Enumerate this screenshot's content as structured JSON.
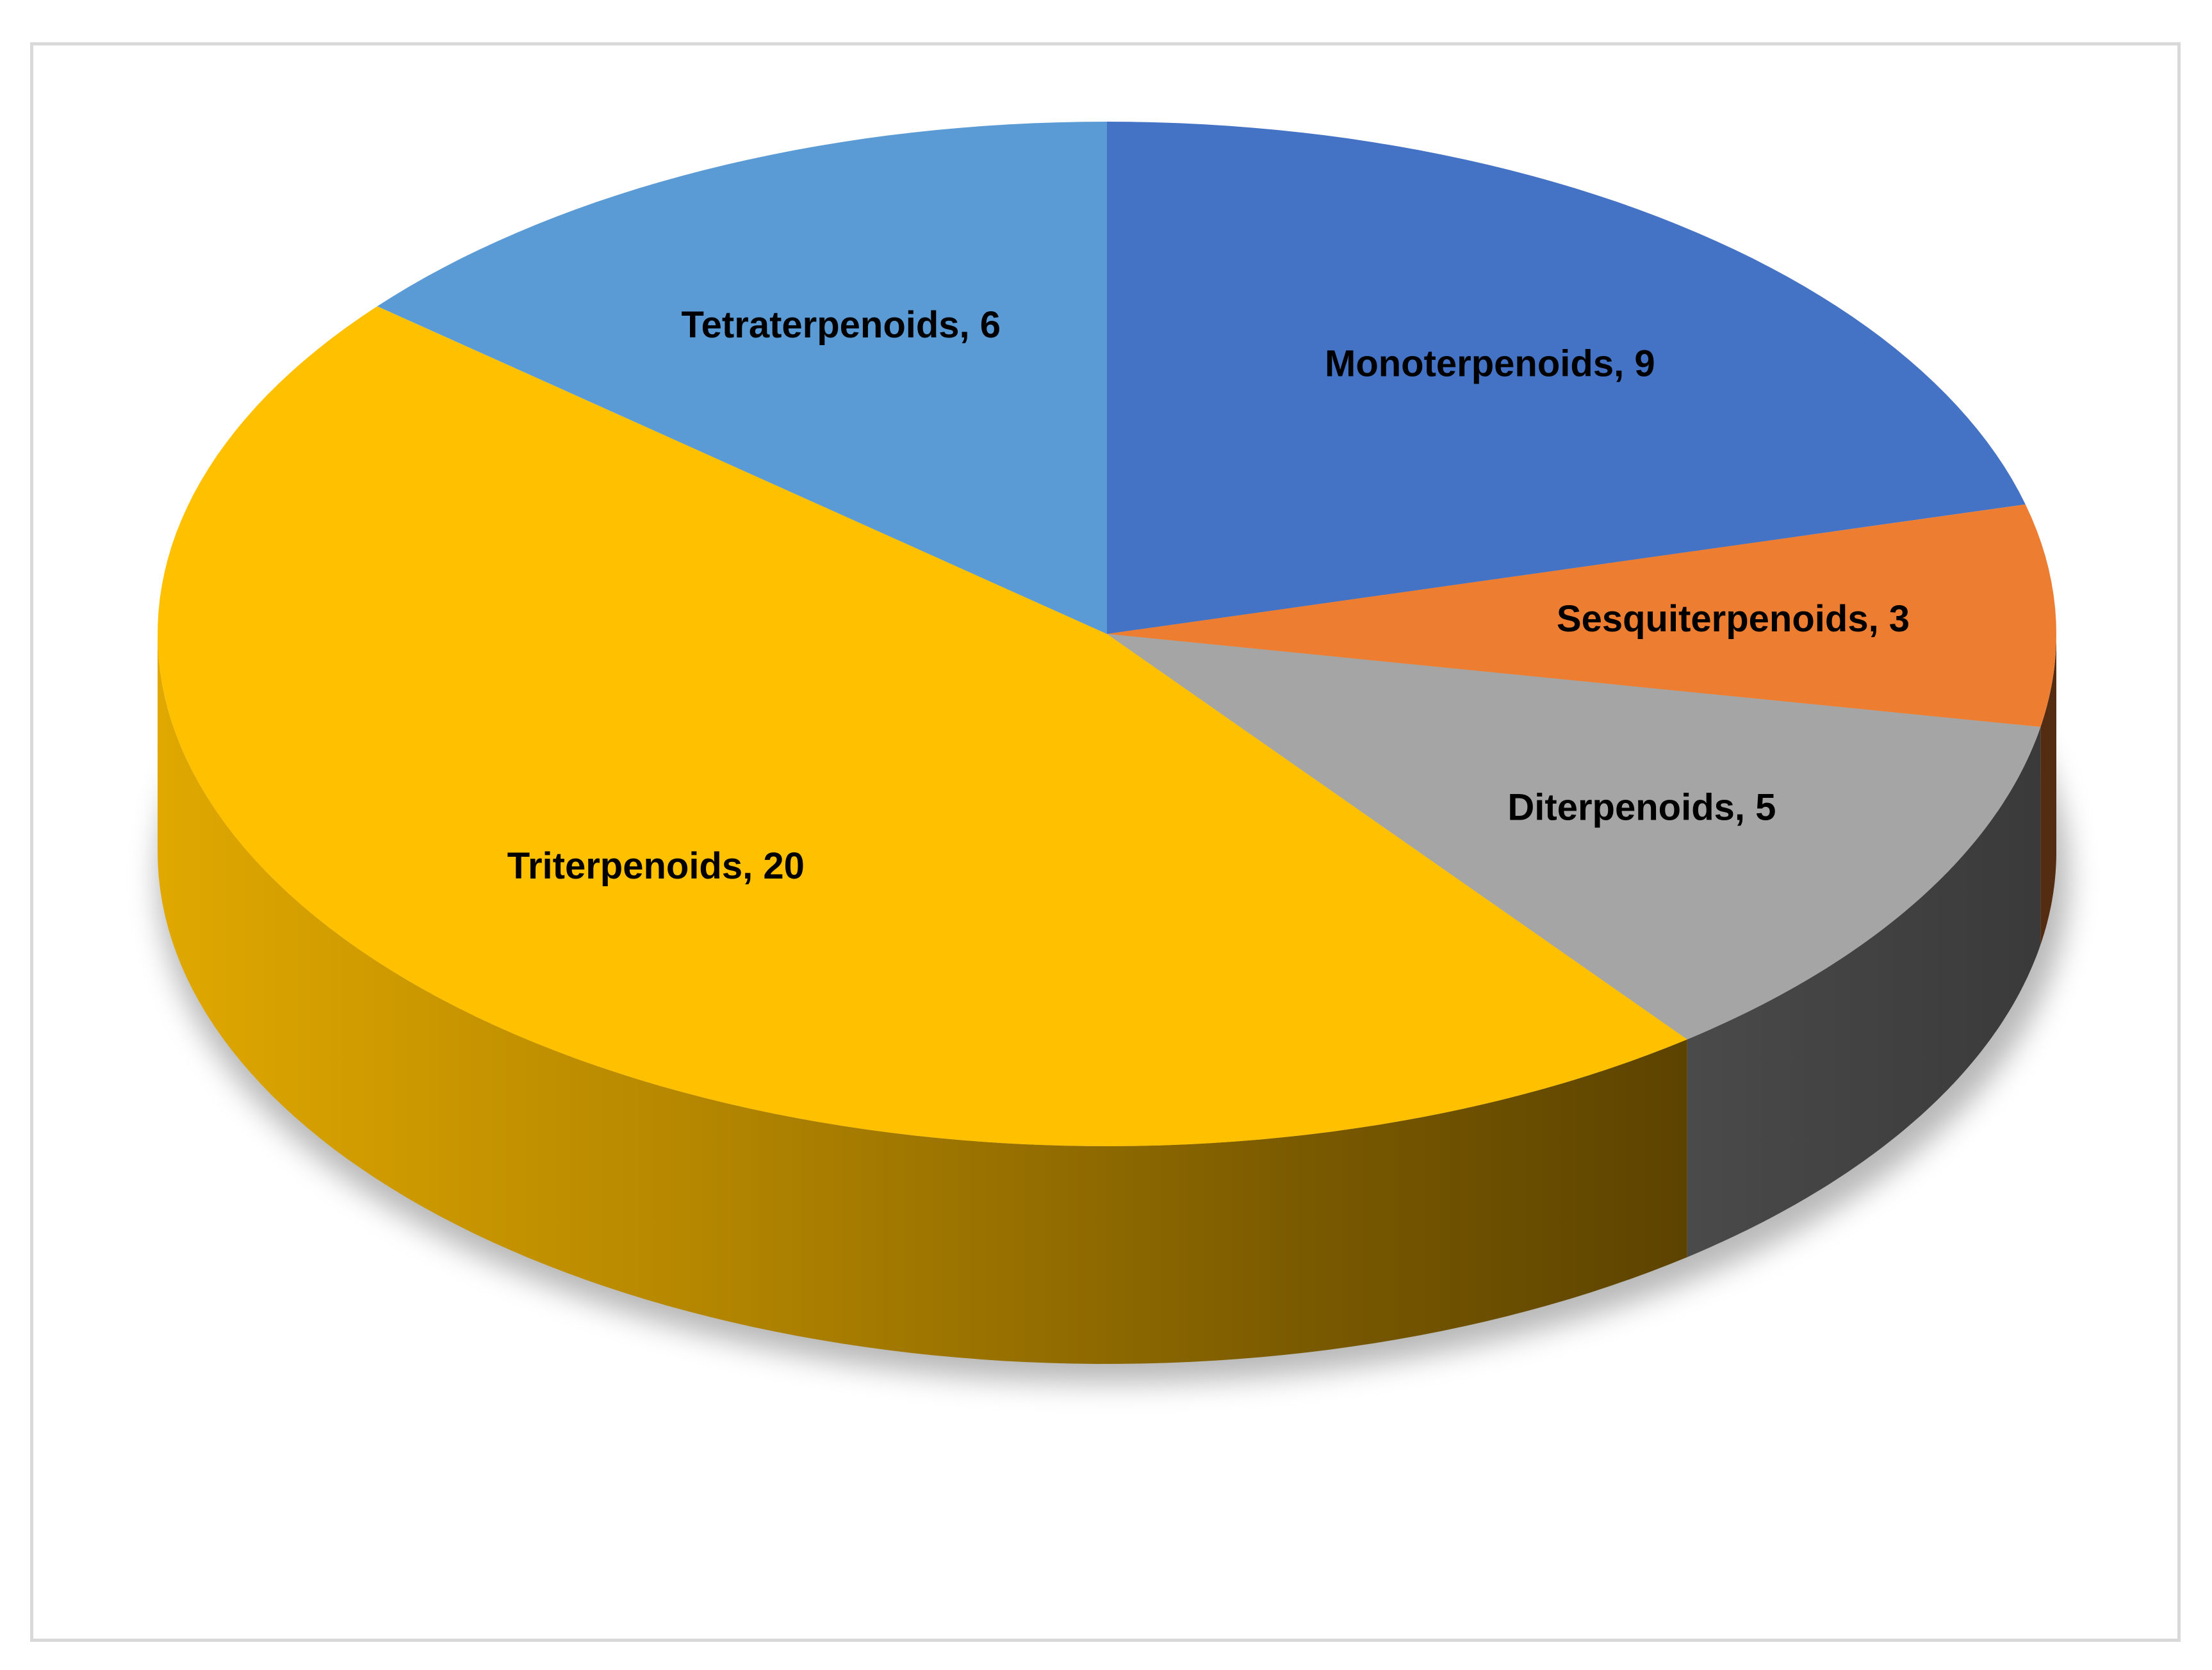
{
  "chart_data": {
    "type": "pie",
    "style": "3d",
    "legend": "none",
    "slices": [
      {
        "name": "Monoterpenoids",
        "value": 9,
        "label": "Monoterpenoids, 9",
        "color": "#4472c4"
      },
      {
        "name": "Sesquiterpenoids",
        "value": 3,
        "label": "Sesquiterpenoids, 3",
        "color": "#ed7d31"
      },
      {
        "name": "Diterpenoids",
        "value": 5,
        "label": "Diterpenoids, 5",
        "color": "#a5a5a5"
      },
      {
        "name": "Triterpenoids",
        "value": 20,
        "label": "Triterpenoids, 20",
        "color": "#ffc000"
      },
      {
        "name": "Tetraterpenoids",
        "value": 6,
        "label": "Tetraterpenoids, 6",
        "color": "#5b9bd5"
      }
    ]
  }
}
